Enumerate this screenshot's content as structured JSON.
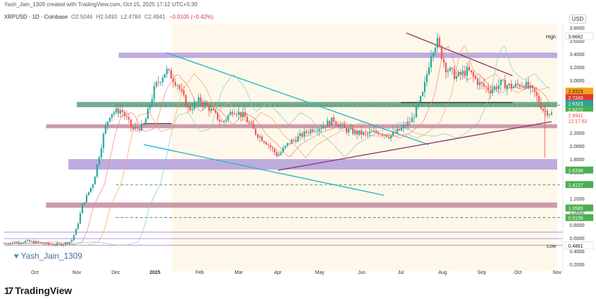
{
  "header": {
    "created_text": "Yash_Jain_1309 created with TradingView.com, Oct 15, 2025 17:12 UTC+5:30"
  },
  "symbol": {
    "name": "XRPUSD · 1D · Coinbase",
    "open": "O2.5046",
    "high": "H2.5493",
    "low": "L2.4784",
    "close": "C2.4941",
    "change": "−0.0105 (−0.42%)"
  },
  "currency_label": "USD",
  "watermark": "Yash_Jain_1309",
  "footer_logo": "TradingView",
  "colors": {
    "up": "#26a69a",
    "down": "#ef5350",
    "purple_zone": "#b39ddb",
    "maroon_zone": "#c48a9e",
    "green_zone": "#5e9e84",
    "trendline_blue": "#26b5d4",
    "trendline_purple": "#8e3a6c",
    "background_tint": "#fdf3d8"
  },
  "chart_data": {
    "type": "candlestick",
    "title": "",
    "xlabel": "",
    "ylabel": "",
    "ylim": [
      0.2,
      3.9
    ],
    "x_ticks": [
      "Oct",
      "Nov",
      "Dec",
      "2025",
      "Feb",
      "Mar",
      "Apr",
      "May",
      "Jun",
      "Jul",
      "Aug",
      "Sep",
      "Oct",
      "Nov"
    ],
    "y_ticks": [
      "3.8000",
      "3.6000",
      "3.4000",
      "3.2000",
      "3.0000",
      "2.8000",
      "2.6000",
      "2.4000",
      "2.2000",
      "2.0000",
      "1.8000",
      "1.6000",
      "1.4000",
      "1.2000",
      "1.0000",
      "0.8000",
      "0.6000",
      "0.4000",
      "0.2000"
    ],
    "price_labels": [
      {
        "text": "High",
        "value": "3.6662",
        "kind": "plain"
      },
      {
        "text": "",
        "value": "2.8323",
        "kind": "orange"
      },
      {
        "text": "",
        "value": "2.7243",
        "kind": "red"
      },
      {
        "text": "",
        "value": "2.6323",
        "kind": "teal"
      },
      {
        "text": "",
        "value": "2.6272",
        "kind": "green"
      },
      {
        "text": "",
        "value": "2.4941",
        "kind": "redwhite"
      },
      {
        "text": "",
        "value": "12:17:52",
        "kind": "redtime"
      },
      {
        "text": "",
        "value": "1.6336",
        "kind": "green"
      },
      {
        "text": "",
        "value": "1.4127",
        "kind": "green"
      },
      {
        "text": "",
        "value": "1.0565",
        "kind": "green"
      },
      {
        "text": "",
        "value": "0.9106",
        "kind": "green"
      },
      {
        "text": "Low",
        "value": "0.4861",
        "kind": "plain"
      }
    ],
    "zones": [
      {
        "name": "resistance-zone-3-4",
        "y_top": 3.42,
        "y_bottom": 3.34,
        "color": "purple"
      },
      {
        "name": "resistance-zone-2-6",
        "y_top": 2.67,
        "y_bottom": 2.59,
        "color": "green"
      },
      {
        "name": "support-zone-2-3",
        "y_top": 2.33,
        "y_bottom": 2.27,
        "color": "maroon"
      },
      {
        "name": "support-zone-1-7",
        "y_top": 1.8,
        "y_bottom": 1.64,
        "color": "purple"
      },
      {
        "name": "support-zone-1-1",
        "y_top": 1.14,
        "y_bottom": 1.06,
        "color": "maroon"
      }
    ],
    "dashed_levels": [
      2.62,
      1.41,
      0.91
    ],
    "horizontal_levels": [
      0.69,
      0.59,
      0.49
    ],
    "series_keypoints": [
      [
        0.0,
        0.52
      ],
      [
        0.04,
        0.55
      ],
      [
        0.06,
        0.53
      ],
      [
        0.08,
        0.5
      ],
      [
        0.1,
        0.5
      ],
      [
        0.12,
        0.55
      ],
      [
        0.13,
        0.75
      ],
      [
        0.14,
        1.1
      ],
      [
        0.16,
        1.45
      ],
      [
        0.18,
        2.25
      ],
      [
        0.19,
        2.5
      ],
      [
        0.21,
        2.55
      ],
      [
        0.23,
        2.25
      ],
      [
        0.25,
        2.3
      ],
      [
        0.27,
        2.9
      ],
      [
        0.29,
        3.15
      ],
      [
        0.31,
        2.95
      ],
      [
        0.33,
        2.55
      ],
      [
        0.35,
        2.7
      ],
      [
        0.37,
        2.55
      ],
      [
        0.39,
        2.35
      ],
      [
        0.41,
        2.55
      ],
      [
        0.43,
        2.45
      ],
      [
        0.45,
        2.2
      ],
      [
        0.47,
        2.05
      ],
      [
        0.49,
        1.85
      ],
      [
        0.51,
        2.05
      ],
      [
        0.53,
        2.15
      ],
      [
        0.55,
        2.25
      ],
      [
        0.57,
        2.3
      ],
      [
        0.59,
        2.4
      ],
      [
        0.61,
        2.25
      ],
      [
        0.63,
        2.2
      ],
      [
        0.65,
        2.18
      ],
      [
        0.67,
        2.22
      ],
      [
        0.69,
        2.15
      ],
      [
        0.71,
        2.25
      ],
      [
        0.73,
        2.4
      ],
      [
        0.75,
        2.8
      ],
      [
        0.765,
        3.45
      ],
      [
        0.775,
        3.6
      ],
      [
        0.79,
        3.2
      ],
      [
        0.81,
        3.05
      ],
      [
        0.83,
        3.15
      ],
      [
        0.85,
        2.95
      ],
      [
        0.87,
        2.85
      ],
      [
        0.89,
        2.95
      ],
      [
        0.91,
        2.9
      ],
      [
        0.93,
        2.95
      ],
      [
        0.95,
        2.8
      ],
      [
        0.965,
        2.55
      ],
      [
        0.98,
        2.49
      ]
    ]
  }
}
